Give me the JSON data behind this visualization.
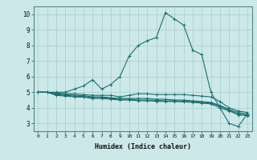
{
  "title": "",
  "xlabel": "Humidex (Indice chaleur)",
  "ylabel": "",
  "bg_color": "#cce8e8",
  "grid_color": "#aacccc",
  "line_color": "#1a7070",
  "xlim": [
    -0.5,
    23.5
  ],
  "ylim": [
    2.5,
    10.5
  ],
  "xticks": [
    0,
    1,
    2,
    3,
    4,
    5,
    6,
    7,
    8,
    9,
    10,
    11,
    12,
    13,
    14,
    15,
    16,
    17,
    18,
    19,
    20,
    21,
    22,
    23
  ],
  "yticks": [
    3,
    4,
    5,
    6,
    7,
    8,
    9,
    10
  ],
  "series": {
    "max": [
      5.0,
      5.0,
      5.0,
      5.0,
      5.2,
      5.4,
      5.8,
      5.2,
      5.5,
      6.0,
      7.3,
      8.0,
      8.3,
      8.5,
      10.1,
      9.7,
      9.3,
      7.7,
      7.4,
      5.0,
      4.0,
      3.0,
      2.8,
      3.6
    ],
    "q75": [
      5.0,
      5.0,
      4.95,
      4.9,
      4.9,
      4.85,
      4.8,
      4.8,
      4.8,
      4.7,
      4.8,
      4.9,
      4.9,
      4.85,
      4.85,
      4.85,
      4.85,
      4.8,
      4.75,
      4.7,
      4.4,
      4.0,
      3.8,
      3.7
    ],
    "median": [
      5.0,
      5.0,
      4.9,
      4.85,
      4.8,
      4.78,
      4.7,
      4.7,
      4.65,
      4.6,
      4.6,
      4.6,
      4.6,
      4.55,
      4.55,
      4.5,
      4.5,
      4.45,
      4.4,
      4.35,
      4.15,
      3.9,
      3.7,
      3.6
    ],
    "q25": [
      5.0,
      5.0,
      4.85,
      4.8,
      4.75,
      4.72,
      4.65,
      4.65,
      4.6,
      4.55,
      4.55,
      4.5,
      4.5,
      4.48,
      4.45,
      4.45,
      4.42,
      4.4,
      4.35,
      4.3,
      4.1,
      3.85,
      3.6,
      3.55
    ],
    "min": [
      5.0,
      5.0,
      4.8,
      4.75,
      4.7,
      4.68,
      4.6,
      4.6,
      4.55,
      4.5,
      4.5,
      4.45,
      4.45,
      4.42,
      4.4,
      4.4,
      4.38,
      4.35,
      4.3,
      4.25,
      4.0,
      3.8,
      3.55,
      3.5
    ]
  }
}
